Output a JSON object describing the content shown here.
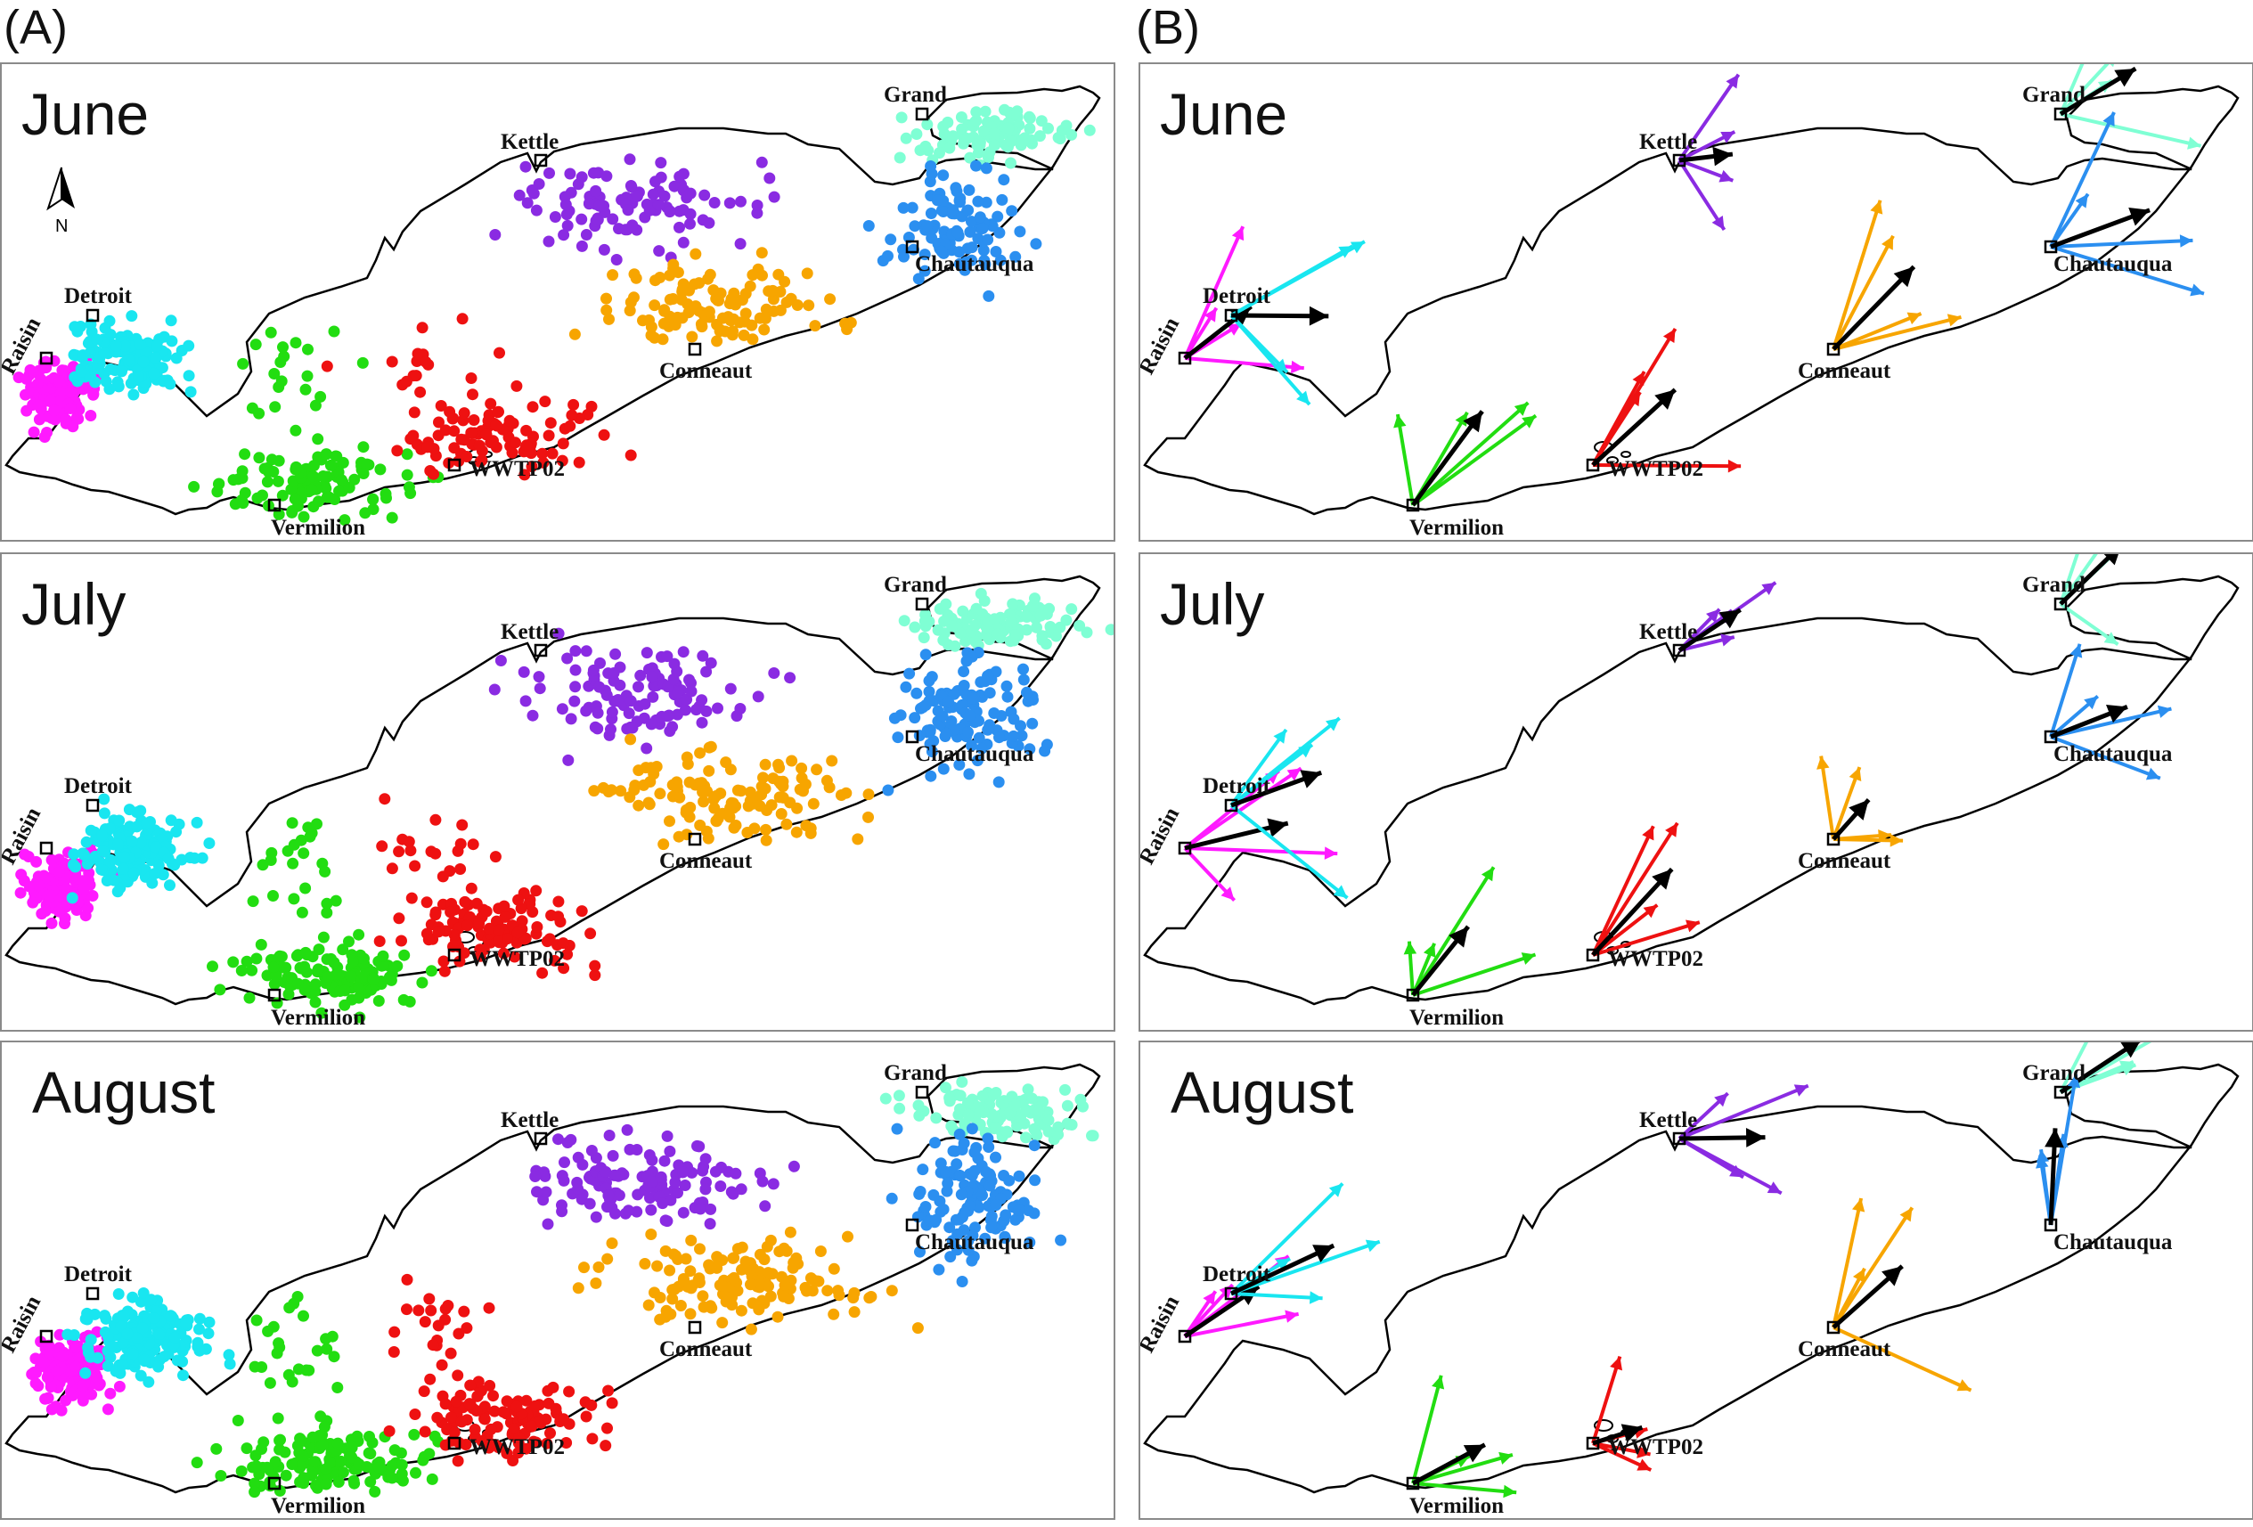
{
  "panels": [
    {
      "letter": "(A)",
      "type": "scatter"
    },
    {
      "letter": "(B)",
      "type": "arrows"
    }
  ],
  "months": [
    "June",
    "July",
    "August"
  ],
  "north_label": "N",
  "sites": [
    {
      "name": "Detroit",
      "color": "#19e6f0"
    },
    {
      "name": "Raisin",
      "color": "#ff1aff"
    },
    {
      "name": "Vermilion",
      "color": "#22dd11"
    },
    {
      "name": "WWTP02",
      "color": "#ee1111"
    },
    {
      "name": "Conneaut",
      "color": "#f7a500"
    },
    {
      "name": "Chautauqua",
      "color": "#2b8ff0"
    },
    {
      "name": "Kettle",
      "color": "#8a2be2"
    },
    {
      "name": "Grand",
      "color": "#7fffd4"
    }
  ],
  "mean_arrow_color": "#000000"
}
